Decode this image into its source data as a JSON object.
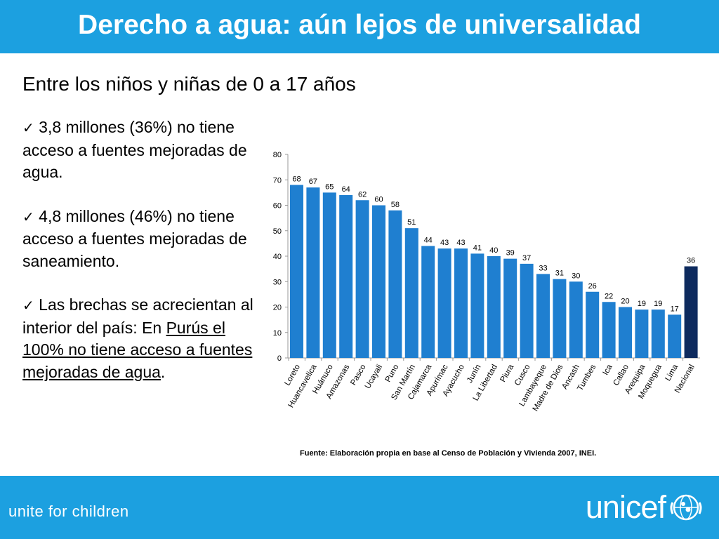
{
  "header": {
    "title": "Derecho a agua: aún lejos de universalidad"
  },
  "subtitle": "Entre los niños y niñas de 0 a 17 años",
  "bullets": [
    {
      "check": "✓",
      "text": " 3,8 millones (36%) no tiene acceso a fuentes mejoradas de agua."
    },
    {
      "check": "✓",
      "text": " 4,8 millones (46%) no tiene acceso a fuentes mejoradas de saneamiento."
    },
    {
      "check": "✓",
      "pre": " Las brechas se acrecientan al interior del país: En ",
      "underlined": "Purús el 100% no tiene acceso a fuentes mejoradas de agua",
      "post": "."
    }
  ],
  "chart_data": {
    "type": "bar",
    "categories": [
      "Loreto",
      "Huancavelica",
      "Huánuco",
      "Amazonas",
      "Pasco",
      "Ucayali",
      "Puno",
      "San Martín",
      "Cajamarca",
      "Apurímac",
      "Ayacucho",
      "Junín",
      "La Libertad",
      "Piura",
      "Cusco",
      "Lambayeque",
      "Madre de Dios",
      "Ancash",
      "Tumbes",
      "Ica",
      "Callao",
      "Arequipa",
      "Moquegua",
      "Lima",
      "Nacional"
    ],
    "values": [
      68,
      67,
      65,
      64,
      62,
      60,
      58,
      51,
      44,
      43,
      43,
      41,
      40,
      39,
      37,
      33,
      31,
      30,
      26,
      22,
      20,
      19,
      19,
      17,
      36
    ],
    "ylim": [
      0,
      80
    ],
    "yticks": [
      "0",
      "10",
      "20",
      "30",
      "40",
      "50",
      "60",
      "70",
      "80"
    ],
    "data_labels": true,
    "grid": false,
    "colors": {
      "default": "#1f7fd0",
      "highlight": "#0d2a5e"
    },
    "highlight_category": "Nacional"
  },
  "source": "Fuente: Elaboración propia en base al Censo de Población y Vivienda 2007, INEI.",
  "footer": {
    "tagline": "unite for children",
    "logo": "unicef"
  },
  "colors": {
    "brand": "#1ca0e0",
    "text_on_brand": "#ffffff"
  }
}
